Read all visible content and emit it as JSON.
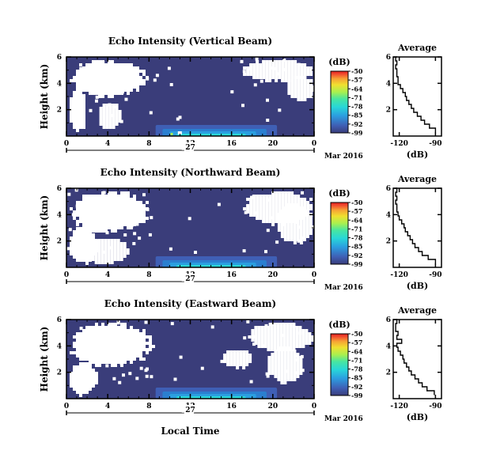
{
  "chart_data": {
    "type": "heatmap",
    "date_label": "27",
    "month_label": "Mar 2016",
    "xlabel": "Local Time",
    "x_ticks": [
      "0",
      "4",
      "8",
      "12",
      "16",
      "20",
      "0"
    ],
    "xlim_hours": [
      0,
      24
    ],
    "y_ticks": [
      "6",
      "4",
      "2"
    ],
    "ylim_km": [
      0,
      6
    ],
    "ylabel": "Height (km)",
    "colorbar": {
      "unit": "(dB)",
      "ticks": [
        "-50",
        "-57",
        "-64",
        "-71",
        "-78",
        "-85",
        "-92",
        "-99"
      ],
      "range": [
        -99,
        -50
      ],
      "colors": [
        "#3a3d7a",
        "#3f5fb5",
        "#2b9fe0",
        "#28d7d8",
        "#48e6a0",
        "#a8f050",
        "#f0e030",
        "#f7a035",
        "#f25030",
        "#e02020"
      ]
    },
    "colors": {
      "background": "#3a3d7a",
      "nodata": "#ffffff",
      "line": "#000000"
    },
    "panels": [
      {
        "title": "Echo Intensity (Vertical Beam)",
        "average": {
          "title": "Average",
          "xlabel": "(dB)",
          "x_ticks": [
            "-120",
            "-90"
          ],
          "xlim": [
            -125,
            -85
          ],
          "y_ticks": [
            "6",
            "4",
            "2"
          ],
          "heights": [
            0.3,
            0.6,
            0.9,
            1.2,
            1.5,
            1.8,
            2.1,
            2.4,
            2.7,
            3.0,
            3.3,
            3.6,
            3.9,
            4.2,
            4.5,
            4.8,
            5.1,
            5.4,
            5.7,
            6.0
          ],
          "values": [
            -90,
            -95,
            -99,
            -102,
            -105,
            -108,
            -110,
            -112,
            -114,
            -115,
            -117,
            -119,
            -121,
            -121,
            -122,
            -122,
            -123,
            -122,
            -123,
            -123
          ]
        }
      },
      {
        "title": "Echo Intensity (Northward Beam)",
        "average": {
          "title": "Average",
          "xlabel": "(dB)",
          "x_ticks": [
            "-120",
            "-90"
          ],
          "xlim": [
            -125,
            -85
          ],
          "y_ticks": [
            "6",
            "4",
            "2"
          ],
          "heights": [
            0.3,
            0.6,
            0.9,
            1.2,
            1.5,
            1.8,
            2.1,
            2.4,
            2.7,
            3.0,
            3.3,
            3.6,
            3.9,
            4.2,
            4.5,
            4.8,
            5.1,
            5.4,
            5.7,
            6.0
          ],
          "values": [
            -90,
            -96,
            -101,
            -104,
            -107,
            -109,
            -111,
            -113,
            -115,
            -116,
            -118,
            -120,
            -121,
            -122,
            -122,
            -123,
            -122,
            -123,
            -122,
            -123
          ]
        }
      },
      {
        "title": "Echo Intensity (Eastward Beam)",
        "average": {
          "title": "Average",
          "xlabel": "(dB)",
          "x_ticks": [
            "-120",
            "-90"
          ],
          "xlim": [
            -125,
            -85
          ],
          "y_ticks": [
            "6",
            "4",
            "2"
          ],
          "heights": [
            0.3,
            0.6,
            0.9,
            1.2,
            1.5,
            1.8,
            2.1,
            2.4,
            2.7,
            3.0,
            3.3,
            3.6,
            3.9,
            4.2,
            4.5,
            4.8,
            5.1,
            5.4,
            5.7,
            6.0
          ],
          "values": [
            -91,
            -97,
            -101,
            -104,
            -107,
            -110,
            -112,
            -114,
            -116,
            -117,
            -119,
            -121,
            -122,
            -118,
            -122,
            -121,
            -123,
            -123,
            -122,
            -123
          ]
        }
      }
    ]
  }
}
